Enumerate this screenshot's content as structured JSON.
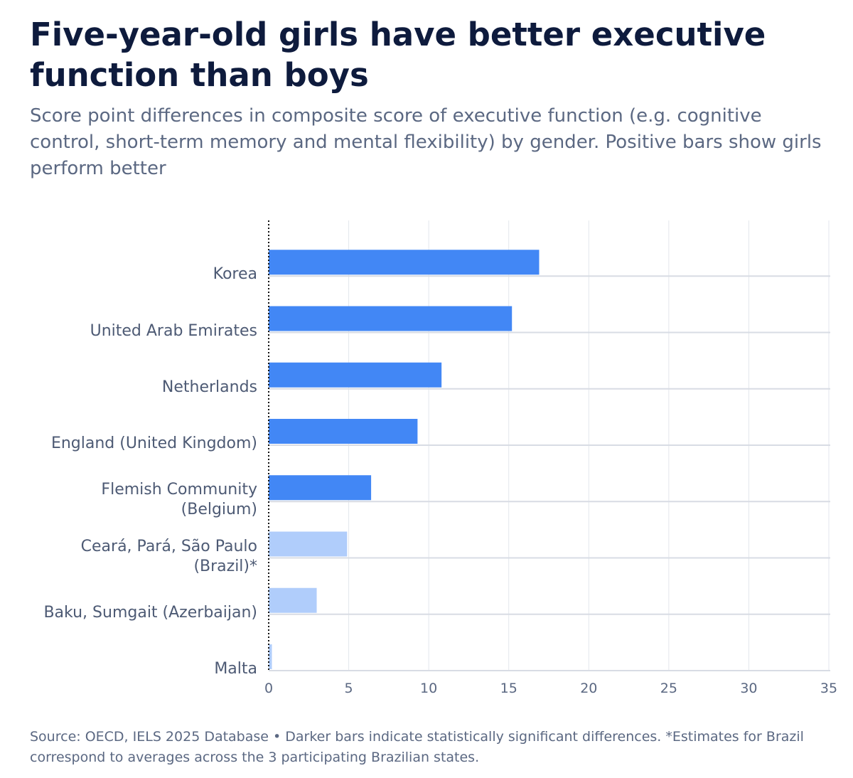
{
  "chart_data": {
    "type": "hbar",
    "title": "Five-year-old girls have better executive function than boys",
    "subtitle": "Score point differences in composite score of executive function (e.g. cognitive control, short-term memory and mental flexibility) by gender. Positive bars show girls perform better",
    "categories": [
      "Korea",
      "United Arab Emirates",
      "Netherlands",
      "England (United Kingdom)",
      "Flemish Community\n(Belgium)",
      "Ceará, Pará, São Paulo\n(Brazil)*",
      "Baku, Sumgait (Azerbaijan)",
      "Malta"
    ],
    "values": [
      16.9,
      15.2,
      10.8,
      9.3,
      6.4,
      4.9,
      3.0,
      0.2
    ],
    "colors": [
      "#4287f5",
      "#4287f5",
      "#4287f5",
      "#4287f5",
      "#4287f5",
      "#b0cdfb",
      "#b0cdfb",
      "#b0cdfb"
    ],
    "xlim": [
      0,
      35
    ],
    "xticks": [
      0,
      5,
      10,
      15,
      20,
      25,
      30,
      35
    ],
    "grid": true,
    "source": "Source: OECD, IELS 2025 Database • Darker bars indicate statistically significant differences. *Estimates for Brazil correspond to averages across the 3 participating Brazilian states."
  }
}
